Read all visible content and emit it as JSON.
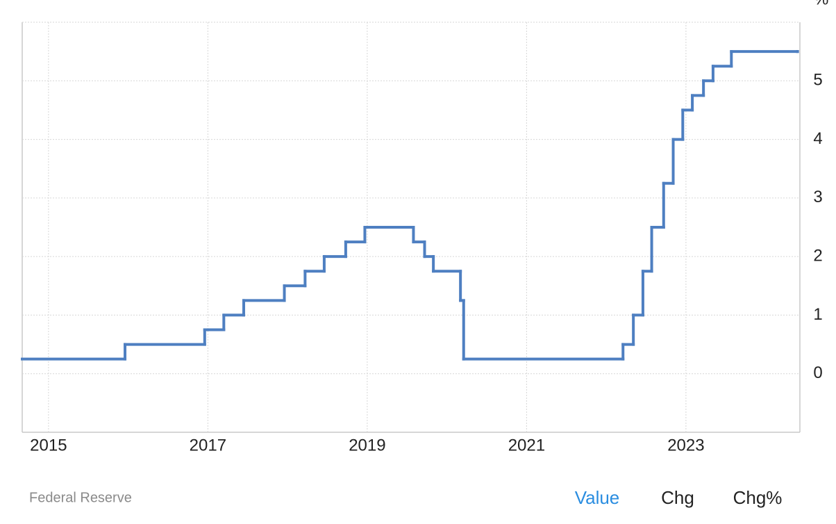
{
  "chart_data": {
    "type": "step",
    "y_unit": "%",
    "source": "Federal Reserve",
    "buttons": [
      "Value",
      "Chg",
      "Chg%"
    ],
    "active_button": "Value",
    "x": [
      2014.67,
      2015.96,
      2016.96,
      2017.2,
      2017.45,
      2017.96,
      2018.22,
      2018.46,
      2018.73,
      2018.97,
      2019.58,
      2019.72,
      2019.83,
      2020.17,
      2020.21,
      2022.21,
      2022.34,
      2022.46,
      2022.57,
      2022.72,
      2022.84,
      2022.96,
      2023.08,
      2023.22,
      2023.34,
      2023.57,
      2024.4
    ],
    "values": [
      0.25,
      0.5,
      0.75,
      1.0,
      1.25,
      1.5,
      1.75,
      2.0,
      2.25,
      2.5,
      2.25,
      2.0,
      1.75,
      1.25,
      0.25,
      0.5,
      1.0,
      1.75,
      2.5,
      3.25,
      4.0,
      4.5,
      4.75,
      5.0,
      5.25,
      5.5,
      5.5
    ],
    "color": "#4e7fc1",
    "active_color": "#2a8de0",
    "xlim": [
      2014.67,
      2024.43
    ],
    "xticks": [
      2015,
      2017,
      2019,
      2021,
      2023
    ],
    "ylim": [
      -1,
      6
    ],
    "yticks": [
      0,
      1,
      2,
      3,
      4,
      5
    ],
    "grid": true
  }
}
